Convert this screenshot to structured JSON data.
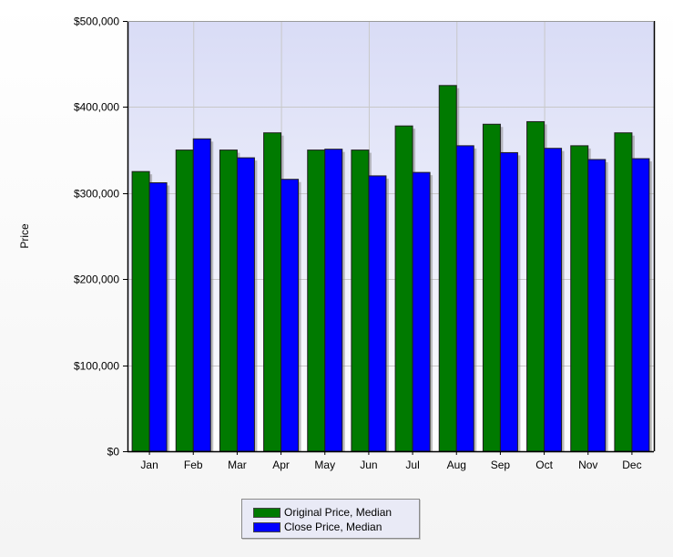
{
  "chart_data": {
    "type": "bar",
    "title": "",
    "xlabel": "",
    "ylabel": "Price",
    "ylim": [
      0,
      500000
    ],
    "yticks": [
      "$0",
      "$100,000",
      "$200,000",
      "$300,000",
      "$400,000",
      "$500,000"
    ],
    "categories": [
      "Jan",
      "Feb",
      "Mar",
      "Apr",
      "May",
      "Jun",
      "Jul",
      "Aug",
      "Sep",
      "Oct",
      "Nov",
      "Dec"
    ],
    "series": [
      {
        "name": "Original Price, Median",
        "color": "#007a00",
        "values": [
          325000,
          350000,
          350000,
          370000,
          350000,
          350000,
          378000,
          425000,
          380000,
          383000,
          355000,
          370000
        ]
      },
      {
        "name": "Close Price, Median",
        "color": "#0000ff",
        "values": [
          312000,
          363000,
          341000,
          316000,
          351000,
          320000,
          324000,
          355000,
          347000,
          352000,
          339000,
          340000
        ]
      }
    ],
    "grid": true,
    "legend": "bottom-center"
  }
}
